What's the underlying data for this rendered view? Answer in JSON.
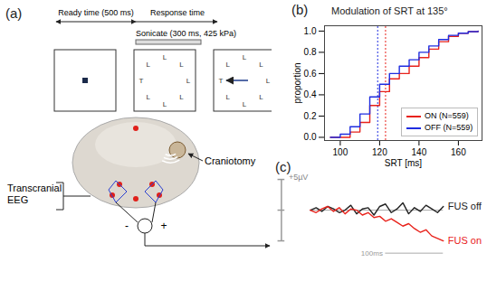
{
  "figure": {
    "panel_a": {
      "label": "(a)",
      "ready_time": "Ready time (500 ms)",
      "response_time": "Response time",
      "sonication": "Sonicate (300 ms, 425 kPa)",
      "screens": [
        {
          "fixation": true,
          "letters": [],
          "arrow": false
        },
        {
          "fixation": false,
          "letters": [
            "L",
            "L",
            "L",
            "L",
            "L",
            "L",
            "T",
            "L"
          ],
          "arrow": false
        },
        {
          "fixation": false,
          "letters": [
            "L",
            "L",
            "L",
            "L",
            "L",
            "L",
            "T",
            "L"
          ],
          "arrow": true
        }
      ],
      "craniotomy": "Craniotomy",
      "eeg_label": [
        "Transcranial",
        "EEG"
      ],
      "electrode_signs": [
        "-",
        "+"
      ]
    }
  },
  "chart_data": [
    {
      "type": "line",
      "label": "(b)",
      "title": "Modulation of SRT at 135°",
      "x_label": "SRT [ms]",
      "y_label": "proportion",
      "x": [
        95,
        100,
        105,
        110,
        115,
        120,
        125,
        130,
        135,
        140,
        145,
        150,
        155,
        160,
        165,
        170
      ],
      "series": [
        {
          "name": "ON (N=559)",
          "color": "#e8221b",
          "values": [
            0,
            0,
            0.05,
            0.14,
            0.3,
            0.43,
            0.55,
            0.6,
            0.67,
            0.75,
            0.83,
            0.9,
            0.95,
            0.98,
            0.995,
            1.0
          ]
        },
        {
          "name": "OFF (N=559)",
          "color": "#1f2de0",
          "values": [
            0,
            0.03,
            0.1,
            0.22,
            0.38,
            0.5,
            0.6,
            0.67,
            0.73,
            0.8,
            0.86,
            0.92,
            0.96,
            0.98,
            0.995,
            1.0
          ]
        }
      ],
      "median_lines": [
        {
          "series": "ON (N=559)",
          "value": 123
        },
        {
          "series": "OFF (N=559)",
          "value": 119
        }
      ],
      "xlim": [
        92,
        172
      ],
      "xticks": [
        100,
        120,
        140,
        160
      ],
      "ylim": [
        -0.03,
        1.05
      ],
      "yticks": [
        {
          "value": 0,
          "label": "0.0"
        },
        {
          "value": 0.2,
          "label": "0.2"
        },
        {
          "value": 0.4,
          "label": "0.4"
        },
        {
          "value": 0.6,
          "label": "0.6"
        },
        {
          "value": 0.8,
          "label": "0.8"
        },
        {
          "value": 1,
          "label": "1.0"
        }
      ],
      "legend": "lower right",
      "grid": false
    },
    {
      "type": "line",
      "label": "(c)",
      "x": [
        0,
        10,
        20,
        30,
        40,
        50,
        60,
        70,
        80,
        90,
        100,
        110,
        120,
        130,
        140,
        150,
        160,
        170,
        180,
        190,
        200,
        210,
        220,
        230
      ],
      "series": [
        {
          "name": "FUS off",
          "color": "#222222",
          "values": [
            0,
            0.2,
            -0.1,
            0.3,
            0.1,
            -0.2,
            0,
            0.4,
            -0.3,
            0.1,
            0.2,
            -0.4,
            0.3,
            0.5,
            -0.2,
            0.1,
            0.6,
            -0.3,
            0.2,
            -0.1,
            0.4,
            0.1,
            -0.2,
            0.3
          ]
        },
        {
          "name": "FUS on",
          "color": "#e8221b",
          "values": [
            0,
            -0.2,
            0.1,
            0.3,
            -0.1,
            0.2,
            -0.3,
            0.1,
            0,
            -0.4,
            -0.2,
            -0.6,
            -0.5,
            -0.9,
            -0.7,
            -1.0,
            -1.3,
            -1.1,
            -1.5,
            -1.8,
            -1.6,
            -2.1,
            -2.3,
            -2.5
          ]
        }
      ],
      "scale_bars": {
        "y": {
          "value": 5,
          "label": "+5µV"
        },
        "x": {
          "value": 100,
          "label": "100ms"
        }
      },
      "xlim": [
        -60,
        300
      ],
      "ylim": [
        -3.6,
        2.8
      ],
      "tick_labels": false,
      "grid": false
    }
  ]
}
